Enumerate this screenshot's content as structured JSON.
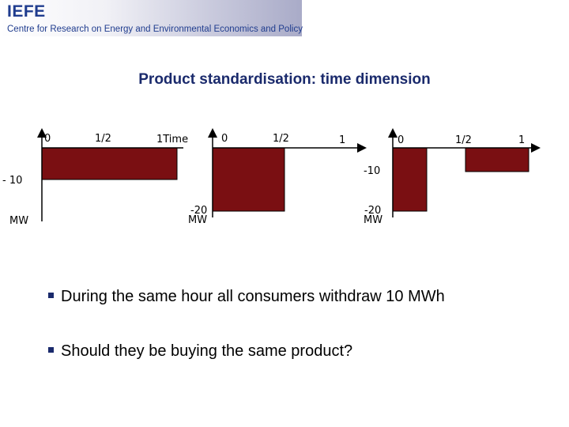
{
  "header": {
    "logo_text": "IEFE",
    "subtitle": "Centre for Research on Energy and Environmental Economics and Policy"
  },
  "slide": {
    "title": "Product standardisation: time dimension"
  },
  "charts": {
    "bar_color": "#7a0f12",
    "panel1": {
      "x_labels": [
        "0",
        "1/2",
        "1Time"
      ],
      "y_label": "- 10",
      "unit": "MW",
      "value": -10,
      "span": [
        0,
        1
      ]
    },
    "panel2": {
      "x_labels": [
        "0",
        "1/2",
        "1"
      ],
      "y_label": "-20",
      "unit": "MW",
      "value": -20,
      "span": [
        0,
        0.5
      ]
    },
    "panel3": {
      "x_labels": [
        "0",
        "1/2",
        "1"
      ],
      "y_labels": [
        "-10",
        "-20"
      ],
      "unit": "MW",
      "value_first": -20,
      "value_second": -10
    }
  },
  "bullets": [
    "During the same hour all consumers withdraw 10 MWh",
    "Should they be buying the same product?"
  ]
}
